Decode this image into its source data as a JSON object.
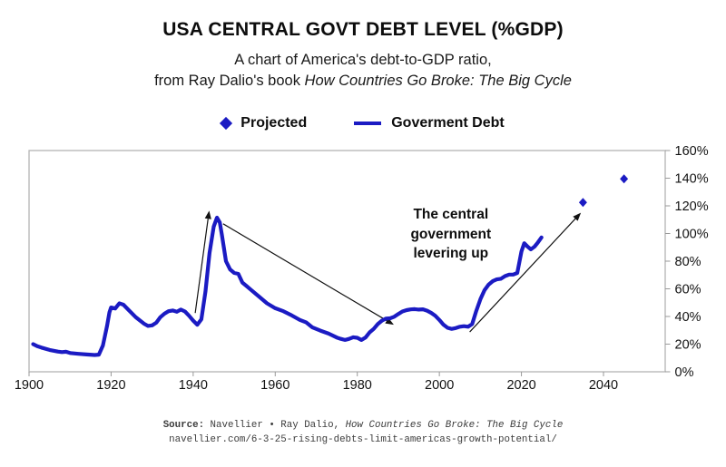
{
  "header": {
    "title": "USA CENTRAL GOVT DEBT LEVEL (%GDP)",
    "subtitle_line1": "A chart of America's debt-to-GDP ratio,",
    "subtitle_line2_prefix": "from Ray Dalio's book ",
    "subtitle_line2_italic": "How Countries Go Broke: The Big Cycle"
  },
  "legend": {
    "projected_label": "Projected",
    "debt_label": "Goverment Debt",
    "marker_color": "#1b1bc3"
  },
  "chart_data": {
    "type": "line",
    "title": "USA CENTRAL GOVT DEBT LEVEL (%GDP)",
    "xlabel": "",
    "ylabel": "",
    "grid": false,
    "legend_position": "top",
    "line_color": "#1b1bc3",
    "axis_color": "#b3b3b3",
    "tick_color": "#999999",
    "label_color": "#111111",
    "x_axis": {
      "ticks": [
        1900,
        1920,
        1940,
        1960,
        1980,
        2000,
        2020,
        2040
      ],
      "range": [
        1900,
        2055
      ]
    },
    "y_axis": {
      "ticks": [
        0,
        20,
        40,
        60,
        80,
        100,
        120,
        140,
        160
      ],
      "suffix": "%",
      "range": [
        0,
        160
      ]
    },
    "series": [
      {
        "name": "Goverment Debt",
        "type": "line",
        "color": "#1b1bc3",
        "points": [
          [
            1901,
            20
          ],
          [
            1902,
            18.5
          ],
          [
            1903,
            17.5
          ],
          [
            1905,
            15.8
          ],
          [
            1907,
            14.6
          ],
          [
            1908,
            14.2
          ],
          [
            1909,
            14.5
          ],
          [
            1910,
            13.6
          ],
          [
            1912,
            13
          ],
          [
            1914,
            12.5
          ],
          [
            1916,
            12.1
          ],
          [
            1917,
            12.4
          ],
          [
            1918,
            19
          ],
          [
            1919,
            33
          ],
          [
            1919.6,
            43
          ],
          [
            1920,
            46.5
          ],
          [
            1921,
            45.8
          ],
          [
            1922,
            49.5
          ],
          [
            1923,
            48.5
          ],
          [
            1924,
            45.5
          ],
          [
            1926,
            39.5
          ],
          [
            1928,
            34.8
          ],
          [
            1929,
            33.2
          ],
          [
            1930,
            33.6
          ],
          [
            1931,
            35.5
          ],
          [
            1932,
            39.5
          ],
          [
            1933,
            42
          ],
          [
            1934,
            43.8
          ],
          [
            1935,
            44.3
          ],
          [
            1936,
            43.4
          ],
          [
            1937,
            45
          ],
          [
            1938,
            43.6
          ],
          [
            1939,
            40.5
          ],
          [
            1940,
            37
          ],
          [
            1941,
            34
          ],
          [
            1942,
            38
          ],
          [
            1943,
            58
          ],
          [
            1944,
            86
          ],
          [
            1945,
            105
          ],
          [
            1945.8,
            111.5
          ],
          [
            1946.5,
            108
          ],
          [
            1947,
            99
          ],
          [
            1948,
            80
          ],
          [
            1949,
            74
          ],
          [
            1950,
            71.5
          ],
          [
            1951,
            70.8
          ],
          [
            1952,
            64.5
          ],
          [
            1953,
            62
          ],
          [
            1954,
            59.5
          ],
          [
            1956,
            54.5
          ],
          [
            1958,
            49.5
          ],
          [
            1960,
            46
          ],
          [
            1962,
            43.8
          ],
          [
            1964,
            40.8
          ],
          [
            1966,
            37.5
          ],
          [
            1967.5,
            35.8
          ],
          [
            1969,
            32.2
          ],
          [
            1971,
            29.8
          ],
          [
            1973,
            27.6
          ],
          [
            1975,
            24.8
          ],
          [
            1976,
            23.8
          ],
          [
            1977,
            23
          ],
          [
            1978,
            23.8
          ],
          [
            1979,
            25
          ],
          [
            1980,
            24.6
          ],
          [
            1981,
            23
          ],
          [
            1982,
            24.8
          ],
          [
            1983,
            28.5
          ],
          [
            1984,
            31
          ],
          [
            1985,
            34.5
          ],
          [
            1986,
            37
          ],
          [
            1987,
            38.5
          ],
          [
            1988,
            38.7
          ],
          [
            1989,
            39.8
          ],
          [
            1990,
            41.8
          ],
          [
            1991,
            43.6
          ],
          [
            1992,
            44.6
          ],
          [
            1993,
            45.1
          ],
          [
            1994,
            45.3
          ],
          [
            1995,
            45
          ],
          [
            1996,
            45.2
          ],
          [
            1997,
            44.2
          ],
          [
            1998,
            42.6
          ],
          [
            1999,
            40.5
          ],
          [
            2000,
            37.5
          ],
          [
            2001,
            34
          ],
          [
            2002,
            31.8
          ],
          [
            2003,
            31
          ],
          [
            2004,
            31.6
          ],
          [
            2005,
            32.6
          ],
          [
            2006,
            33
          ],
          [
            2007,
            32.6
          ],
          [
            2008,
            34.5
          ],
          [
            2009,
            44
          ],
          [
            2010,
            52.5
          ],
          [
            2011,
            59
          ],
          [
            2012,
            63
          ],
          [
            2013,
            65.5
          ],
          [
            2014,
            66.8
          ],
          [
            2015,
            67.3
          ],
          [
            2016,
            69.2
          ],
          [
            2017,
            70.3
          ],
          [
            2018,
            70.3
          ],
          [
            2019,
            71.5
          ],
          [
            2020,
            87
          ],
          [
            2020.7,
            93
          ],
          [
            2021.5,
            90.5
          ],
          [
            2022.3,
            88.5
          ],
          [
            2023.2,
            90.5
          ],
          [
            2024,
            93.5
          ],
          [
            2024.9,
            97.2
          ]
        ]
      },
      {
        "name": "Projected",
        "type": "scatter",
        "marker": "diamond",
        "color": "#1b1bc3",
        "points": [
          [
            2035,
            122.5
          ],
          [
            2045,
            139.5
          ]
        ]
      }
    ],
    "annotations": {
      "label": {
        "lines": [
          "The central",
          "government",
          "levering up"
        ],
        "anchor_year": 2002.8,
        "anchor_pct_top": 120.5
      },
      "arrows": [
        {
          "from_year": 1940.5,
          "from_pct": 42.5,
          "to_year": 1943.9,
          "to_pct": 116.5
        },
        {
          "from_year": 1947.3,
          "from_pct": 107.0,
          "to_year": 1988.9,
          "to_pct": 34.0
        },
        {
          "from_year": 2007.4,
          "from_pct": 28.8,
          "to_year": 2034.5,
          "to_pct": 115.0
        }
      ]
    }
  },
  "footer": {
    "source_label": "Source:",
    "source_text": " Navellier • Ray Dalio, ",
    "source_italic": "How Countries Go Broke: The Big Cycle",
    "source_url": "navellier.com/6-3-25-rising-debts-limit-americas-growth-potential/"
  }
}
